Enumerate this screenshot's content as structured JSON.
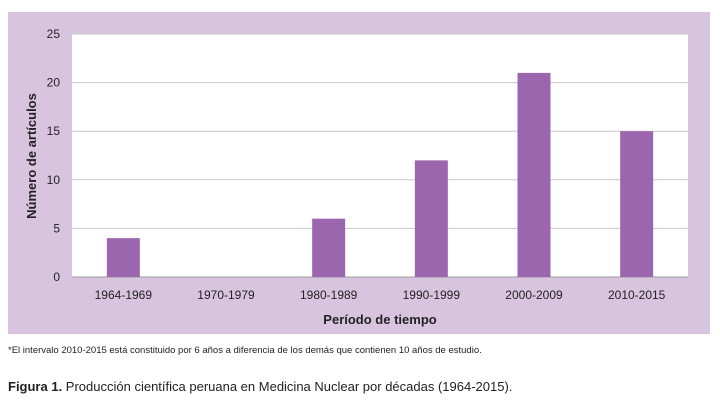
{
  "chart_data": {
    "type": "bar",
    "categories": [
      "1964-1969",
      "1970-1979",
      "1980-1989",
      "1990-1999",
      "2000-2009",
      "2010-2015"
    ],
    "values": [
      4,
      0,
      6,
      12,
      21,
      15
    ],
    "xlabel": "Período de tiempo",
    "ylabel": "Número de artículos",
    "ylim": [
      0,
      25
    ],
    "yticks": [
      0,
      5,
      10,
      15,
      20,
      25
    ],
    "grid": "horizontal",
    "legend": "none",
    "bar_color": "#9b66ad",
    "frame_color": "#d9c4e0",
    "plot_bg": "#ffffff",
    "grid_color": "#c8c8c8"
  },
  "footnote": "*El intervalo 2010-2015 está constituido por 6 años a diferencia de los demás que contienen 10 años de estudio.",
  "caption": {
    "label": "Figura 1.",
    "text": " Producción científica peruana en Medicina Nuclear por décadas (1964-2015)."
  }
}
